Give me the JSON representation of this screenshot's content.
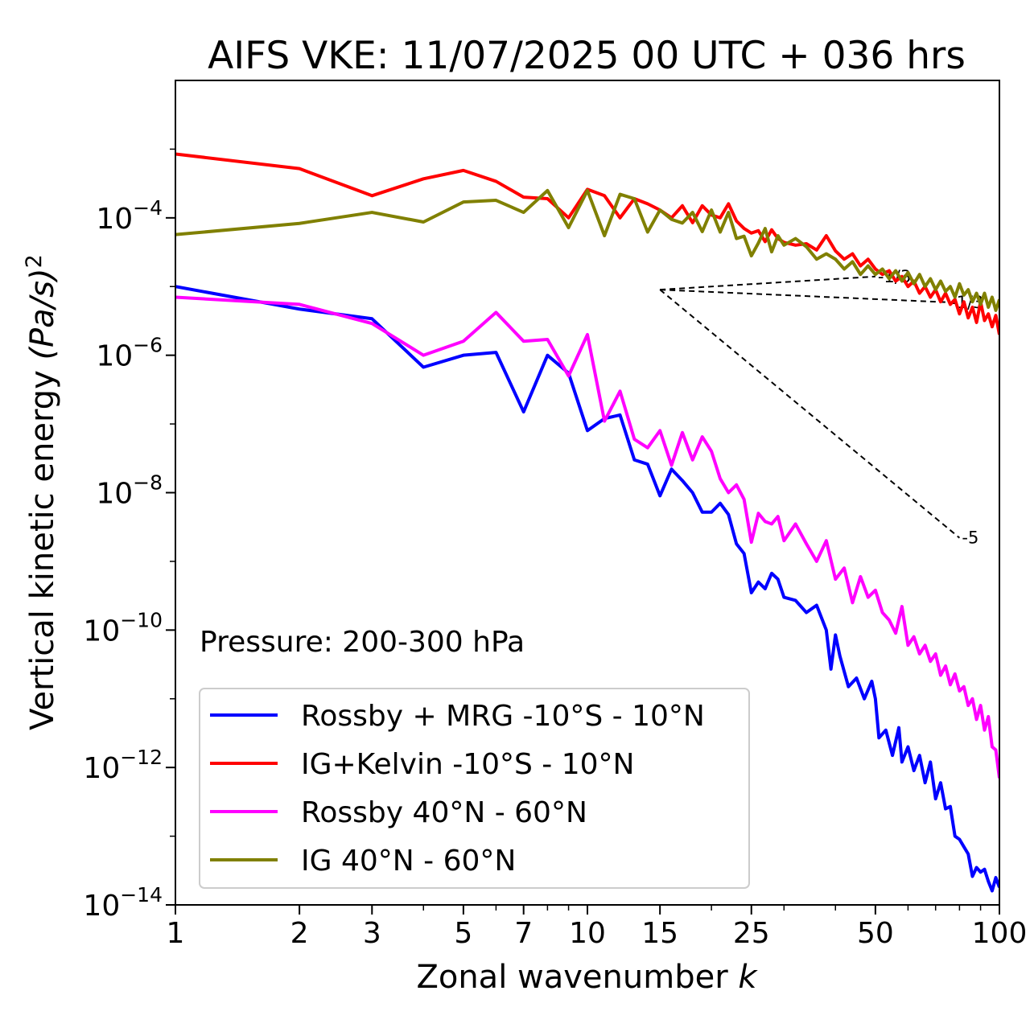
{
  "chart_data": {
    "type": "line",
    "title": "AIFS VKE: 11/07/2025 00 UTC + 036 hrs",
    "xlabel": "Zonal wavenumber",
    "xlabel_var": "k",
    "ylabel": "Vertical kinetic energy",
    "ylabel_unit": "(Pa/s)",
    "ylabel_unit_exp": "2",
    "xscale": "log",
    "yscale": "log",
    "xlim": [
      1,
      100
    ],
    "ylim": [
      1e-14,
      0.01
    ],
    "x_ticks": [
      1,
      2,
      3,
      5,
      7,
      10,
      15,
      25,
      50,
      100
    ],
    "x_tick_labels": [
      "1",
      "2",
      "3",
      "5",
      "7",
      "10",
      "15",
      "25",
      "50",
      "100"
    ],
    "y_ticks": [
      {
        "value": 0.0001,
        "base": "10",
        "exp": "−4"
      },
      {
        "value": 1e-06,
        "base": "10",
        "exp": "−6"
      },
      {
        "value": 1e-08,
        "base": "10",
        "exp": "−8"
      },
      {
        "value": 1e-10,
        "base": "10",
        "exp": "−10"
      },
      {
        "value": 1e-12,
        "base": "10",
        "exp": "−12"
      },
      {
        "value": 1e-14,
        "base": "10",
        "exp": "−14"
      }
    ],
    "annotation": "Pressure: 200-300 hPa",
    "legend_location": "lower-left",
    "series": [
      {
        "name": "Rossby + MRG -10°S - 10°N",
        "color": "#0000ff",
        "points": [
          [
            1,
            1e-05
          ],
          [
            2,
            4.7e-06
          ],
          [
            3,
            3.4e-06
          ],
          [
            4,
            6.7e-07
          ],
          [
            5,
            1e-06
          ],
          [
            6,
            1.1e-06
          ],
          [
            7,
            1.5e-07
          ],
          [
            8,
            1e-06
          ],
          [
            9,
            5.5e-07
          ],
          [
            10,
            8e-08
          ],
          [
            11,
            1.2e-07
          ],
          [
            12,
            1.35e-07
          ],
          [
            13,
            3e-08
          ],
          [
            14,
            2.6e-08
          ],
          [
            15,
            9e-09
          ],
          [
            16,
            2.2e-08
          ],
          [
            17,
            1.5e-08
          ],
          [
            18,
            1e-08
          ],
          [
            19,
            5.2e-09
          ],
          [
            20,
            5.2e-09
          ],
          [
            21,
            7e-09
          ],
          [
            22,
            4.8e-09
          ],
          [
            23,
            1.8e-09
          ],
          [
            24,
            1.3e-09
          ],
          [
            25,
            3.5e-10
          ],
          [
            26,
            5e-10
          ],
          [
            27,
            4e-10
          ],
          [
            28,
            6.7e-10
          ],
          [
            29,
            5.5e-10
          ],
          [
            30,
            3e-10
          ],
          [
            32,
            2.7e-10
          ],
          [
            34,
            1.8e-10
          ],
          [
            36,
            2.3e-10
          ],
          [
            38,
            1e-10
          ],
          [
            39,
            2.7e-11
          ],
          [
            40,
            8.5e-11
          ],
          [
            41,
            4.2e-11
          ],
          [
            43,
            1.5e-11
          ],
          [
            45,
            2e-11
          ],
          [
            47,
            1e-11
          ],
          [
            49,
            1.8e-11
          ],
          [
            50,
            1e-11
          ],
          [
            51,
            2.7e-12
          ],
          [
            53,
            3.5e-12
          ],
          [
            55,
            1.5e-12
          ],
          [
            57,
            3.8e-12
          ],
          [
            58,
            1.2e-12
          ],
          [
            60,
            2e-12
          ],
          [
            62,
            9e-13
          ],
          [
            64,
            1.5e-12
          ],
          [
            66,
            6e-13
          ],
          [
            68,
            1.2e-12
          ],
          [
            70,
            3.5e-13
          ],
          [
            72,
            6e-13
          ],
          [
            74,
            2.5e-13
          ],
          [
            76,
            2.7e-13
          ],
          [
            78,
            1e-13
          ],
          [
            80,
            9e-14
          ],
          [
            82,
            7e-14
          ],
          [
            84,
            5.5e-14
          ],
          [
            86,
            2.6e-14
          ],
          [
            88,
            3.5e-14
          ],
          [
            90,
            3e-14
          ],
          [
            92,
            3.3e-14
          ],
          [
            94,
            2.2e-14
          ],
          [
            96,
            1.6e-14
          ],
          [
            98,
            2.5e-14
          ],
          [
            100,
            1.8e-14
          ]
        ]
      },
      {
        "name": "IG+Kelvin -10°S - 10°N",
        "color": "#ff0000",
        "points": [
          [
            1,
            0.00085
          ],
          [
            2,
            0.00052
          ],
          [
            3,
            0.00021
          ],
          [
            4,
            0.00037
          ],
          [
            5,
            0.00049
          ],
          [
            6,
            0.00034
          ],
          [
            7,
            0.0002
          ],
          [
            8,
            0.00019
          ],
          [
            9,
            0.0001
          ],
          [
            10,
            0.00026
          ],
          [
            11,
            0.00021
          ],
          [
            12,
            0.0001
          ],
          [
            13,
            0.00019
          ],
          [
            14,
            0.00016
          ],
          [
            15,
            0.00013
          ],
          [
            16,
            0.0001
          ],
          [
            17,
            0.00015
          ],
          [
            18,
            8.5e-05
          ],
          [
            19,
            0.00015
          ],
          [
            20,
            0.00011
          ],
          [
            21,
            0.0001
          ],
          [
            22,
            0.00016
          ],
          [
            23,
            9e-05
          ],
          [
            24,
            7e-05
          ],
          [
            25,
            6e-05
          ],
          [
            26,
            6.5e-05
          ],
          [
            27,
            4.5e-05
          ],
          [
            28,
            6.7e-05
          ],
          [
            29,
            5e-05
          ],
          [
            30,
            4.4e-05
          ],
          [
            32,
            4e-05
          ],
          [
            34,
            4.2e-05
          ],
          [
            36,
            3.4e-05
          ],
          [
            38,
            5.5e-05
          ],
          [
            40,
            3.3e-05
          ],
          [
            42,
            2.5e-05
          ],
          [
            44,
            3e-05
          ],
          [
            46,
            2e-05
          ],
          [
            48,
            2.5e-05
          ],
          [
            50,
            1.8e-05
          ],
          [
            52,
            1.5e-05
          ],
          [
            54,
            1.7e-05
          ],
          [
            56,
            1.2e-05
          ],
          [
            58,
            1.4e-05
          ],
          [
            60,
            1e-05
          ],
          [
            62,
            1.2e-05
          ],
          [
            64,
            8e-06
          ],
          [
            66,
            1e-05
          ],
          [
            68,
            7e-06
          ],
          [
            70,
            9e-06
          ],
          [
            72,
            6e-06
          ],
          [
            74,
            8e-06
          ],
          [
            76,
            5.5e-06
          ],
          [
            78,
            6.5e-06
          ],
          [
            80,
            4e-06
          ],
          [
            82,
            6e-06
          ],
          [
            84,
            3.5e-06
          ],
          [
            86,
            5e-06
          ],
          [
            88,
            3e-06
          ],
          [
            90,
            6e-06
          ],
          [
            92,
            3.2e-06
          ],
          [
            94,
            4e-06
          ],
          [
            96,
            2.6e-06
          ],
          [
            98,
            3.8e-06
          ],
          [
            100,
            2e-06
          ]
        ]
      },
      {
        "name": "Rossby 40°N - 60°N",
        "color": "#ff00ff",
        "points": [
          [
            1,
            7e-06
          ],
          [
            2,
            5.5e-06
          ],
          [
            3,
            2.9e-06
          ],
          [
            4,
            1e-06
          ],
          [
            5,
            1.6e-06
          ],
          [
            6,
            4.2e-06
          ],
          [
            7,
            1.6e-06
          ],
          [
            8,
            1.7e-06
          ],
          [
            9,
            5e-07
          ],
          [
            10,
            2e-06
          ],
          [
            11,
            1.1e-07
          ],
          [
            12,
            3e-07
          ],
          [
            13,
            6e-08
          ],
          [
            14,
            4.5e-08
          ],
          [
            15,
            8e-08
          ],
          [
            16,
            2.5e-08
          ],
          [
            17,
            7.5e-08
          ],
          [
            18,
            3e-08
          ],
          [
            19,
            6.5e-08
          ],
          [
            20,
            4e-08
          ],
          [
            21,
            1.6e-08
          ],
          [
            22,
            1e-08
          ],
          [
            23,
            1.3e-08
          ],
          [
            24,
            8e-09
          ],
          [
            25,
            1.9e-09
          ],
          [
            26,
            5e-09
          ],
          [
            27,
            3.8e-09
          ],
          [
            28,
            3.5e-09
          ],
          [
            29,
            4.5e-09
          ],
          [
            30,
            2e-09
          ],
          [
            32,
            3.5e-09
          ],
          [
            34,
            1.8e-09
          ],
          [
            36,
            1e-09
          ],
          [
            38,
            2e-09
          ],
          [
            40,
            5.5e-10
          ],
          [
            42,
            8e-10
          ],
          [
            44,
            2.5e-10
          ],
          [
            46,
            6e-10
          ],
          [
            48,
            3e-10
          ],
          [
            50,
            3.8e-10
          ],
          [
            52,
            1.8e-10
          ],
          [
            54,
            1.4e-10
          ],
          [
            56,
            9e-11
          ],
          [
            58,
            2.2e-10
          ],
          [
            60,
            6e-11
          ],
          [
            62,
            8e-11
          ],
          [
            64,
            4.5e-11
          ],
          [
            66,
            6e-11
          ],
          [
            68,
            3.5e-11
          ],
          [
            70,
            4.5e-11
          ],
          [
            72,
            2.2e-11
          ],
          [
            74,
            3e-11
          ],
          [
            76,
            1.6e-11
          ],
          [
            78,
            2.3e-11
          ],
          [
            80,
            1.3e-11
          ],
          [
            82,
            1.5e-11
          ],
          [
            84,
            8e-12
          ],
          [
            86,
            1e-11
          ],
          [
            88,
            5e-12
          ],
          [
            90,
            8e-12
          ],
          [
            92,
            3.5e-12
          ],
          [
            94,
            5.5e-12
          ],
          [
            96,
            2e-12
          ],
          [
            98,
            1.8e-12
          ],
          [
            100,
            7e-13
          ]
        ]
      },
      {
        "name": "IG 40°N - 60°N",
        "color": "#808000",
        "points": [
          [
            1,
            5.7e-05
          ],
          [
            2,
            8.3e-05
          ],
          [
            3,
            0.00012
          ],
          [
            4,
            8.7e-05
          ],
          [
            5,
            0.00017
          ],
          [
            6,
            0.00018
          ],
          [
            7,
            0.00012
          ],
          [
            8,
            0.00025
          ],
          [
            9,
            7.2e-05
          ],
          [
            10,
            0.00025
          ],
          [
            11,
            5.5e-05
          ],
          [
            12,
            0.00022
          ],
          [
            13,
            0.00019
          ],
          [
            14,
            6.2e-05
          ],
          [
            15,
            0.00013
          ],
          [
            16,
            9.5e-05
          ],
          [
            17,
            8.4e-05
          ],
          [
            18,
            0.00012
          ],
          [
            19,
            6.3e-05
          ],
          [
            20,
            0.00013
          ],
          [
            21,
            6.2e-05
          ],
          [
            22,
            0.00012
          ],
          [
            23,
            5e-05
          ],
          [
            24,
            5.4e-05
          ],
          [
            25,
            2.8e-05
          ],
          [
            26,
            4.3e-05
          ],
          [
            27,
            7e-05
          ],
          [
            28,
            3.2e-05
          ],
          [
            29,
            5.5e-05
          ],
          [
            30,
            4e-05
          ],
          [
            32,
            5e-05
          ],
          [
            34,
            3.8e-05
          ],
          [
            36,
            2.5e-05
          ],
          [
            38,
            3e-05
          ],
          [
            40,
            2.5e-05
          ],
          [
            42,
            1.8e-05
          ],
          [
            44,
            2.3e-05
          ],
          [
            46,
            1.5e-05
          ],
          [
            48,
            2e-05
          ],
          [
            50,
            1.5e-05
          ],
          [
            52,
            1.8e-05
          ],
          [
            54,
            1.3e-05
          ],
          [
            56,
            1.7e-05
          ],
          [
            58,
            1.2e-05
          ],
          [
            60,
            1.6e-05
          ],
          [
            62,
            1.1e-05
          ],
          [
            64,
            1.5e-05
          ],
          [
            66,
            1e-05
          ],
          [
            68,
            1.3e-05
          ],
          [
            70,
            9e-06
          ],
          [
            72,
            1.2e-05
          ],
          [
            74,
            8.5e-06
          ],
          [
            76,
            1e-05
          ],
          [
            78,
            7e-06
          ],
          [
            80,
            1.1e-05
          ],
          [
            82,
            7.5e-06
          ],
          [
            84,
            9e-06
          ],
          [
            86,
            6e-06
          ],
          [
            88,
            8e-06
          ],
          [
            90,
            5.5e-06
          ],
          [
            92,
            8e-06
          ],
          [
            94,
            5e-06
          ],
          [
            96,
            7e-06
          ],
          [
            98,
            4.5e-06
          ],
          [
            100,
            6.5e-06
          ]
        ]
      }
    ],
    "reference_lines": [
      {
        "label": "-1/3",
        "from": [
          15,
          9e-06
        ],
        "to": [
          50,
          1.4e-05
        ]
      },
      {
        "label": "-1/3",
        "from": [
          15,
          9e-06
        ],
        "to": [
          75,
          5.9e-06
        ]
      },
      {
        "label": "-5",
        "from": [
          15,
          9e-06
        ],
        "to": [
          80,
          2.2e-09
        ]
      }
    ]
  }
}
